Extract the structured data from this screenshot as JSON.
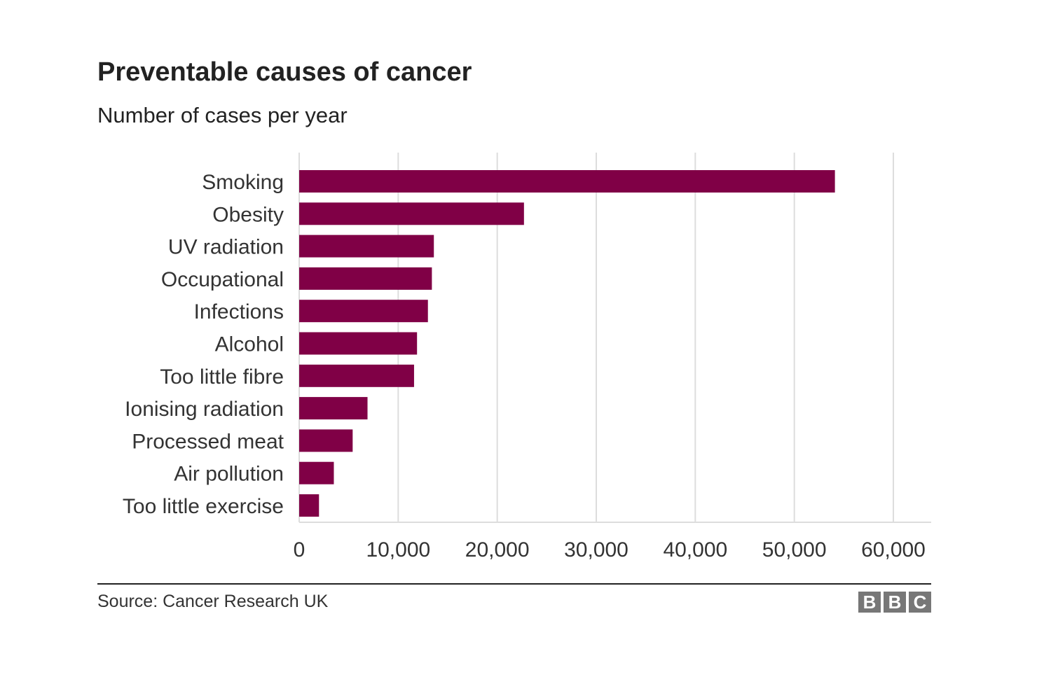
{
  "chart_data": {
    "type": "bar",
    "orientation": "horizontal",
    "title": "Preventable causes of cancer",
    "subtitle": "Number of cases per year",
    "categories": [
      "Smoking",
      "Obesity",
      "UV radiation",
      "Occupational",
      "Infections",
      "Alcohol",
      "Too little fibre",
      "Ionising radiation",
      "Processed meat",
      "Air pollution",
      "Too little exercise"
    ],
    "values": [
      54100,
      22700,
      13600,
      13400,
      13000,
      11900,
      11600,
      6900,
      5400,
      3500,
      2000
    ],
    "xlim": [
      0,
      63500
    ],
    "xticks": [
      0,
      10000,
      20000,
      30000,
      40000,
      50000,
      60000
    ],
    "xtick_labels": [
      "0",
      "10,000",
      "20,000",
      "30,000",
      "40,000",
      "50,000",
      "60,000"
    ],
    "grid": "vertical",
    "bar_color": "#800046"
  },
  "footer": {
    "source": "Source: Cancer Research UK",
    "logo": [
      "B",
      "B",
      "C"
    ]
  }
}
